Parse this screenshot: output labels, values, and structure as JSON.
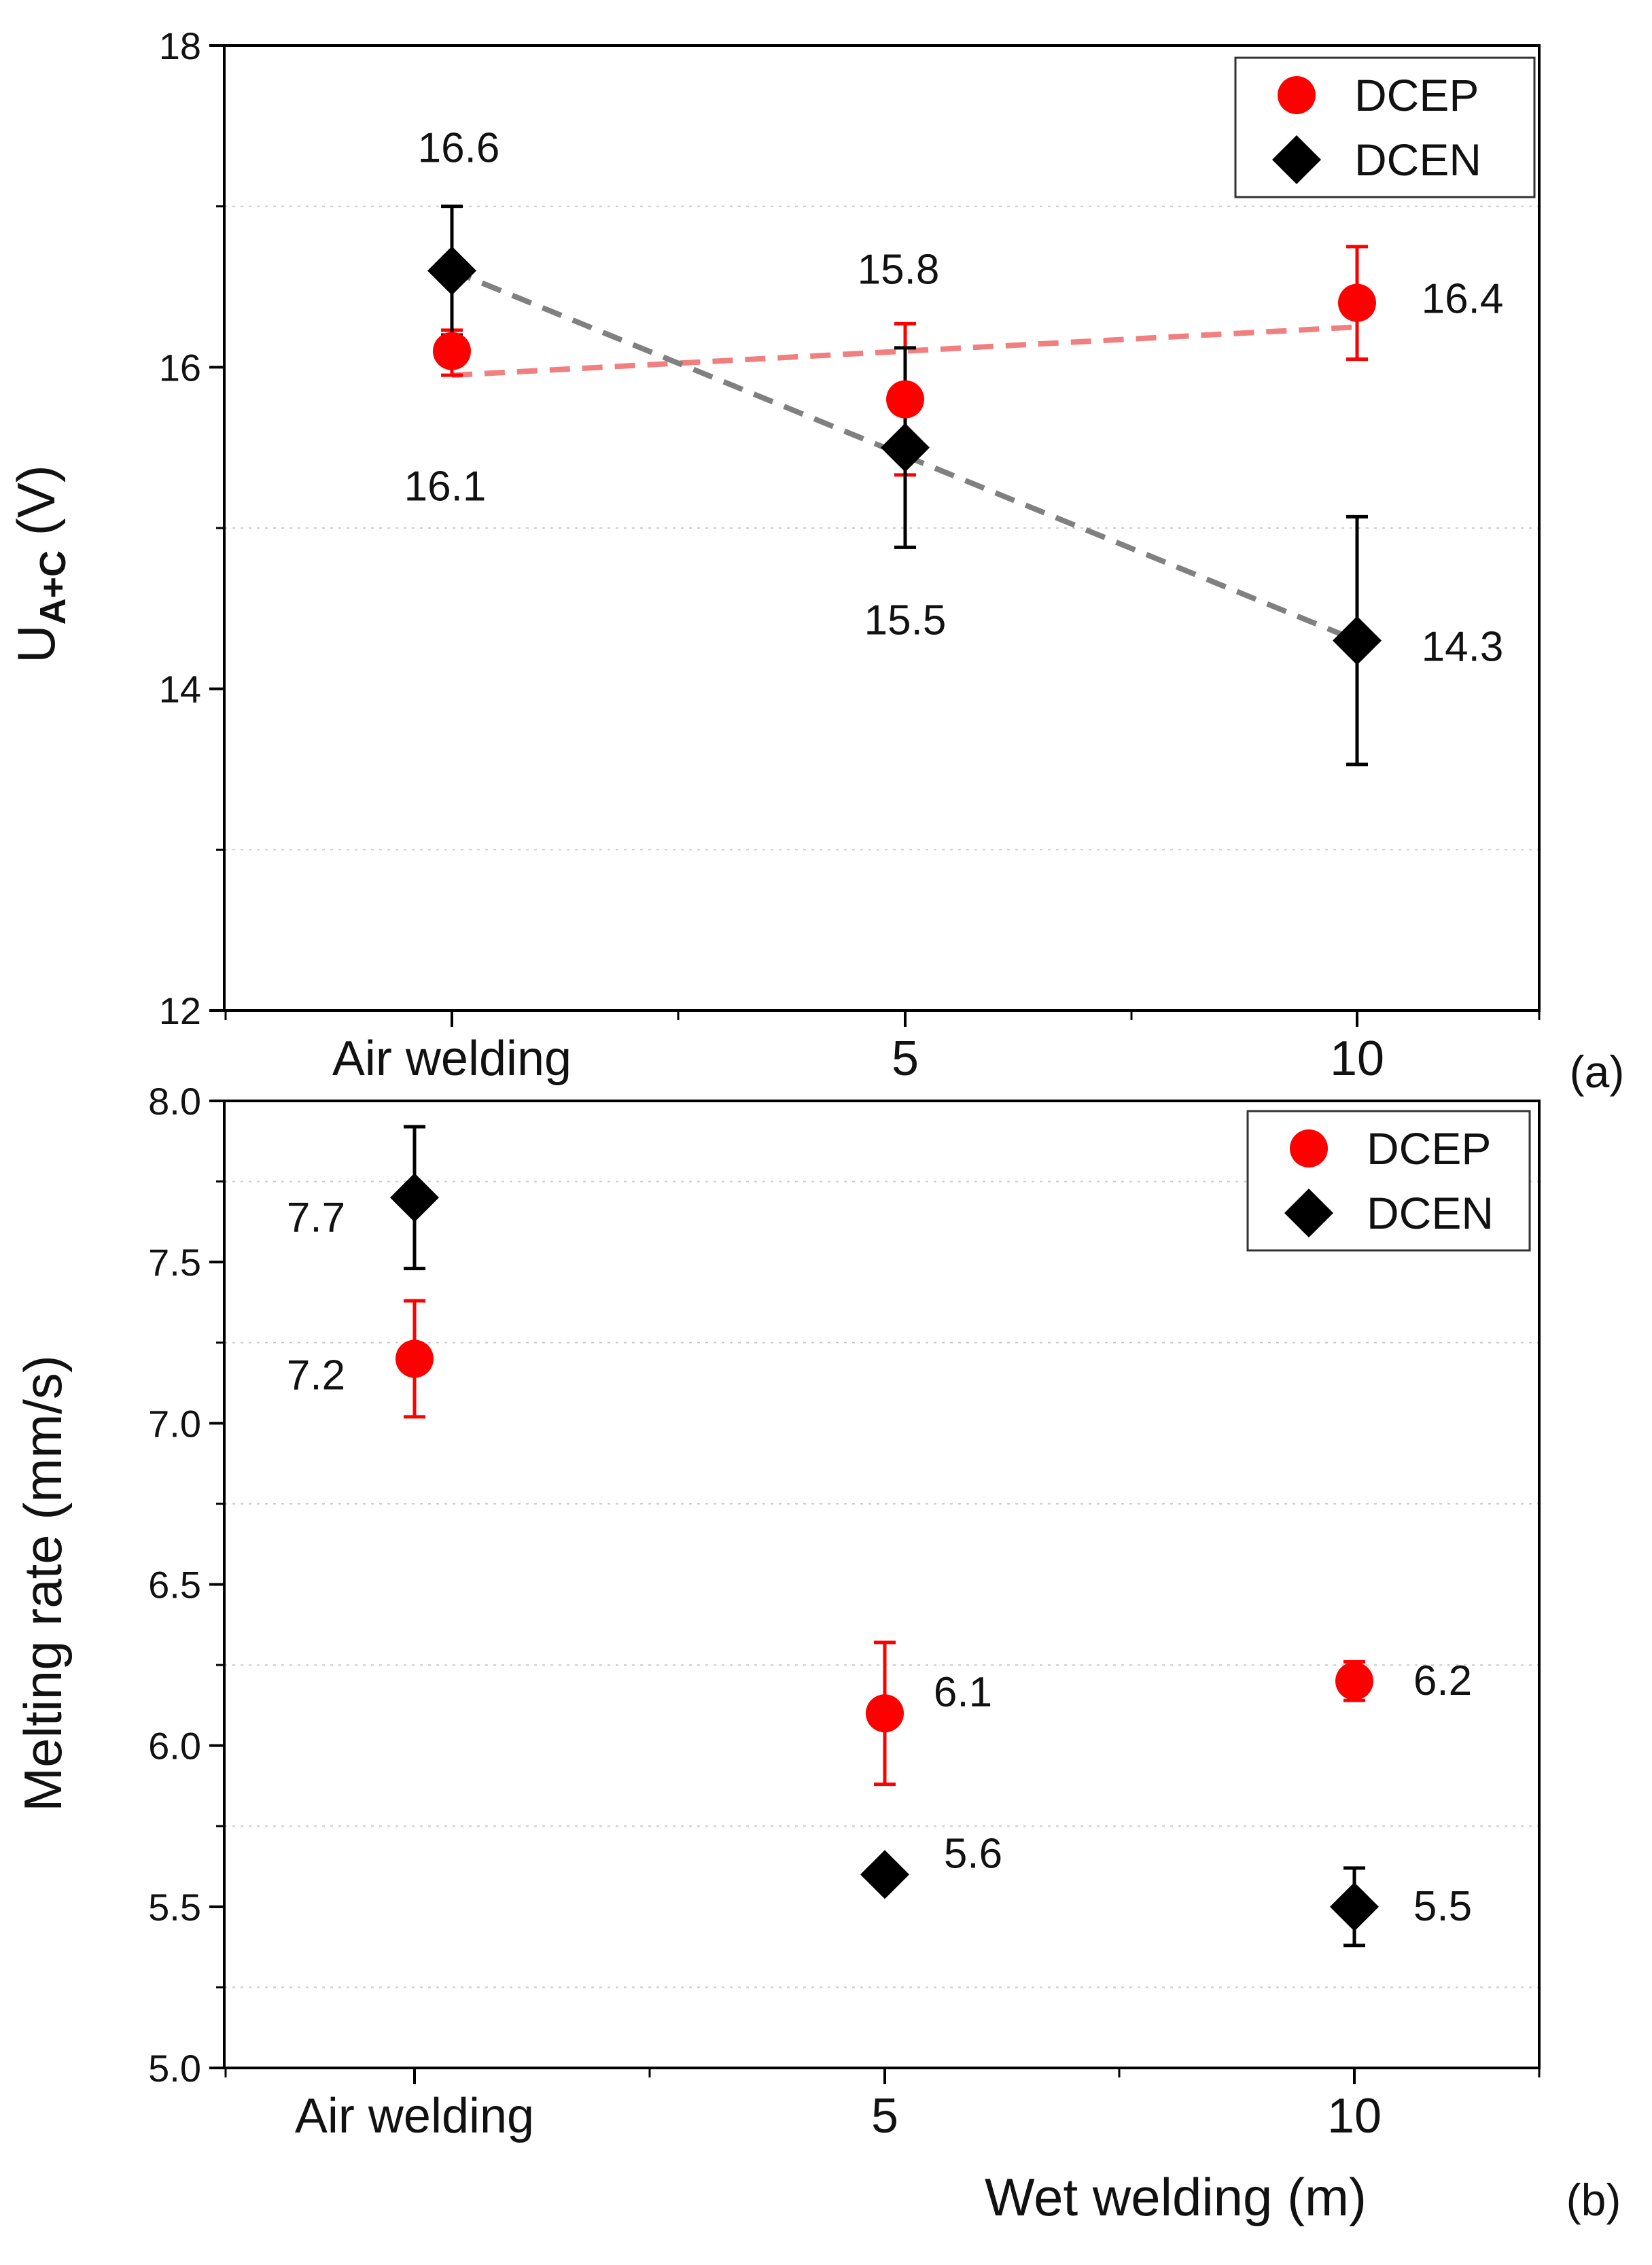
{
  "colors": {
    "dcep": "#ff0000",
    "dcen": "#000000",
    "dcep_trend": "#f08080",
    "dcen_trend": "#808080",
    "grid": "#cccccc",
    "axis": "#000000"
  },
  "chart_data": [
    {
      "type": "scatter",
      "panel_label": "(a)",
      "title": "",
      "xlabel": "",
      "ylabel_main": "U",
      "ylabel_sub": "A+C",
      "ylabel_unit": " (V)",
      "categories": [
        "Air welding",
        "5",
        "10"
      ],
      "ylim": [
        12,
        18
      ],
      "yticks": [
        12,
        14,
        16,
        18
      ],
      "grid": "horizontal dotted at 13, 15, 17",
      "legend": {
        "position": "top-right",
        "entries": [
          "DCEP",
          "DCEN"
        ]
      },
      "series": [
        {
          "name": "DCEP",
          "marker": "circle",
          "trendline": true,
          "points": [
            {
              "category": "Air welding",
              "value": 16.1,
              "err_low": 15.95,
              "err_high": 16.23,
              "label": "16.1"
            },
            {
              "category": "5",
              "value": 15.8,
              "err_low": 15.33,
              "err_high": 16.27,
              "label": "15.8"
            },
            {
              "category": "10",
              "value": 16.4,
              "err_low": 16.05,
              "err_high": 16.75,
              "label": "16.4"
            }
          ]
        },
        {
          "name": "DCEN",
          "marker": "diamond",
          "trendline": true,
          "points": [
            {
              "category": "Air welding",
              "value": 16.6,
              "err_low": 16.2,
              "err_high": 17.0,
              "label": "16.6"
            },
            {
              "category": "5",
              "value": 15.5,
              "err_low": 14.88,
              "err_high": 16.12,
              "label": "15.5"
            },
            {
              "category": "10",
              "value": 14.3,
              "err_low": 13.53,
              "err_high": 15.07,
              "label": "14.3"
            }
          ]
        }
      ]
    },
    {
      "type": "scatter",
      "panel_label": "(b)",
      "title": "",
      "xlabel": "Wet welding (m)",
      "ylabel": "Melting rate (mm/s)",
      "categories": [
        "Air welding",
        "5",
        "10"
      ],
      "ylim": [
        5.0,
        8.0
      ],
      "yticks": [
        "5.0",
        "5.5",
        "6.0",
        "6.5",
        "7.0",
        "7.5",
        "8.0"
      ],
      "grid": "horizontal dotted at 5.25, 5.75, 6.25, 6.75, 7.25, 7.75",
      "legend": {
        "position": "top-right",
        "entries": [
          "DCEP",
          "DCEN"
        ]
      },
      "series": [
        {
          "name": "DCEP",
          "marker": "circle",
          "trendline": false,
          "points": [
            {
              "category": "Air welding",
              "value": 7.2,
              "err_low": 7.02,
              "err_high": 7.38,
              "label": "7.2"
            },
            {
              "category": "5",
              "value": 6.1,
              "err_low": 5.88,
              "err_high": 6.32,
              "label": "6.1"
            },
            {
              "category": "10",
              "value": 6.2,
              "err_low": 6.14,
              "err_high": 6.26,
              "label": "6.2"
            }
          ]
        },
        {
          "name": "DCEN",
          "marker": "diamond",
          "trendline": false,
          "points": [
            {
              "category": "Air welding",
              "value": 7.7,
              "err_low": 7.48,
              "err_high": 7.92,
              "label": "7.7"
            },
            {
              "category": "5",
              "value": 5.6,
              "err_low": 5.57,
              "err_high": 5.63,
              "label": "5.6"
            },
            {
              "category": "10",
              "value": 5.5,
              "err_low": 5.38,
              "err_high": 5.62,
              "label": "5.5"
            }
          ]
        }
      ]
    }
  ]
}
